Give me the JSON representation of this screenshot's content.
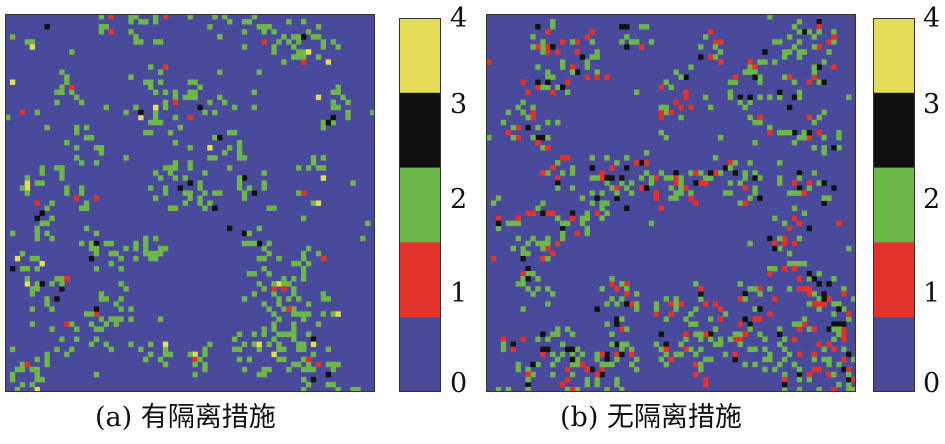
{
  "chart_data": [
    {
      "type": "heatmap",
      "caption": "(a) 有隔离措施",
      "colorbar": {
        "ticks": [
          "4",
          "3",
          "2",
          "1",
          "0"
        ],
        "levels": [
          {
            "value": 0,
            "color": "#4a4a9c"
          },
          {
            "value": 1,
            "color": "#e2322b"
          },
          {
            "value": 2,
            "color": "#6cb64a"
          },
          {
            "value": 3,
            "color": "#111111"
          },
          {
            "value": 4,
            "color": "#e4dc55"
          }
        ]
      },
      "summary_state_fractions": {
        "0": 0.8,
        "1": 0.01,
        "2": 0.16,
        "3": 0.015,
        "4": 0.015
      }
    },
    {
      "type": "heatmap",
      "caption": "(b) 无隔离措施",
      "colorbar": {
        "ticks": [
          "4",
          "3",
          "2",
          "1",
          "0"
        ],
        "levels": [
          {
            "value": 0,
            "color": "#4a4a9c"
          },
          {
            "value": 1,
            "color": "#e2322b"
          },
          {
            "value": 2,
            "color": "#6cb64a"
          },
          {
            "value": 3,
            "color": "#111111"
          },
          {
            "value": 4,
            "color": "#e4dc55"
          }
        ]
      },
      "summary_state_fractions": {
        "0": 0.72,
        "1": 0.06,
        "2": 0.18,
        "3": 0.04,
        "4": 0.0
      }
    }
  ]
}
